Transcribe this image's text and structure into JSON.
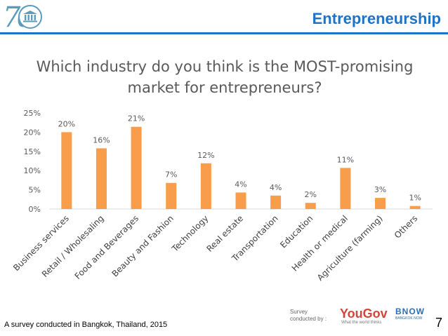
{
  "header": {
    "logo_text": "70",
    "logo_name": "unesco-logo",
    "title": "Entrepreneurship"
  },
  "chart_data": {
    "type": "bar",
    "title": "Which industry do you think is the MOST-promising market for entrepreneurs?",
    "title_lines": [
      "Which industry do you think is the MOST-promising",
      "market for entrepreneurs?"
    ],
    "categories": [
      "Business services",
      "Retail / Wholesaling",
      "Food and Beverages",
      "Beauty and Fashion",
      "Technology",
      "Real estate",
      "Transportation",
      "Education",
      "Health or medical",
      "Agriculture (farming)",
      "Others"
    ],
    "values": [
      20,
      16,
      21,
      7,
      12,
      4,
      4,
      2,
      11,
      3,
      1
    ],
    "heights": [
      20,
      15.8,
      21.4,
      6.8,
      11.9,
      4.3,
      3.5,
      1.6,
      10.7,
      2.9,
      0.8
    ],
    "value_labels": [
      "20%",
      "16%",
      "21%",
      "7%",
      "12%",
      "4%",
      "4%",
      "2%",
      "11%",
      "3%",
      "1%"
    ],
    "y_ticks": [
      "0%",
      "5%",
      "10%",
      "15%",
      "20%",
      "25%"
    ],
    "ylim": [
      0,
      25
    ],
    "xlabel": "",
    "ylabel": "",
    "grid": false,
    "bar_color": "#f79d4b"
  },
  "footer": {
    "note": "A survey conducted in Bangkok, Thailand, 2015",
    "slide_number": "7",
    "credit_label": "Survey conducted by :",
    "yougov": "YouGov",
    "yougov_tagline": "What the world thinks",
    "bnow": "BNOW",
    "bnow_sub": "BANGKOK NOW"
  }
}
